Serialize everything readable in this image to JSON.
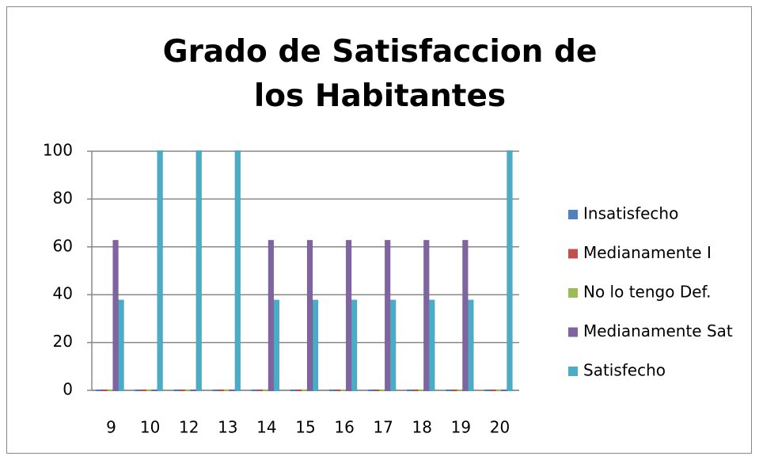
{
  "chart_data": {
    "type": "bar",
    "title": "Grado de Satisfaccion de los Habitantes",
    "categories": [
      "9",
      "10",
      "12",
      "13",
      "14",
      "15",
      "16",
      "17",
      "18",
      "19",
      "20"
    ],
    "series": [
      {
        "name": "Insatisfecho",
        "color": "#4f81bd",
        "values": [
          0,
          0,
          0,
          0,
          0,
          0,
          0,
          0,
          0,
          0,
          0
        ]
      },
      {
        "name": "Medianamente I",
        "color": "#c0504d",
        "values": [
          0,
          0,
          0,
          0,
          0,
          0,
          0,
          0,
          0,
          0,
          0
        ]
      },
      {
        "name": "No lo tengo Def.",
        "color": "#9bbb59",
        "values": [
          0,
          0,
          0,
          0,
          0,
          0,
          0,
          0,
          0,
          0,
          0
        ]
      },
      {
        "name": "Medianamente Sat",
        "color": "#8064a2",
        "values": [
          62.5,
          0,
          0,
          0,
          62.5,
          62.5,
          62.5,
          62.5,
          62.5,
          62.5,
          0
        ]
      },
      {
        "name": "Satisfecho",
        "color": "#4bacc6",
        "values": [
          37.5,
          100,
          100,
          100,
          37.5,
          37.5,
          37.5,
          37.5,
          37.5,
          37.5,
          100
        ]
      }
    ],
    "ylim": [
      0,
      100
    ],
    "yticks": [
      0,
      20,
      40,
      60,
      80,
      100
    ],
    "grid": true,
    "legend": "right"
  }
}
